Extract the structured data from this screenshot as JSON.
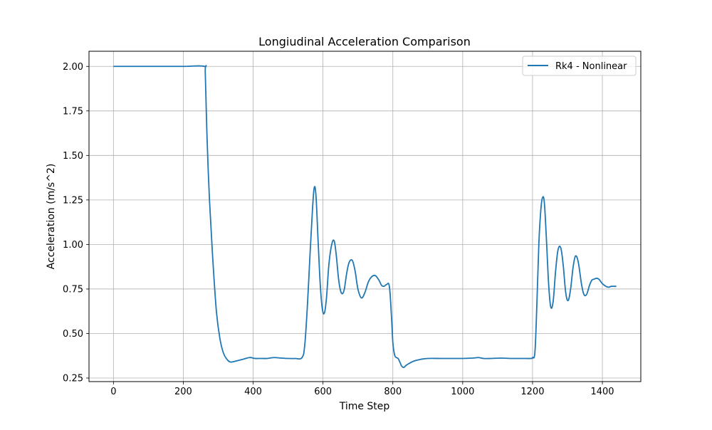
{
  "chart_data": {
    "type": "line",
    "title": "Longiudinal Acceleration Comparison",
    "xlabel": "Time Step",
    "ylabel": "Acceleration (m/s^2)",
    "xlim": [
      -70,
      1510
    ],
    "ylim": [
      0.23,
      2.085
    ],
    "xticks": [
      0,
      200,
      400,
      600,
      800,
      1000,
      1200,
      1400
    ],
    "xtick_labels": [
      "0",
      "200",
      "400",
      "600",
      "800",
      "1000",
      "1200",
      "1400"
    ],
    "yticks": [
      0.25,
      0.5,
      0.75,
      1.0,
      1.25,
      1.5,
      1.75,
      2.0
    ],
    "ytick_labels": [
      "0.25",
      "0.50",
      "0.75",
      "1.00",
      "1.25",
      "1.50",
      "1.75",
      "2.00"
    ],
    "grid": true,
    "legend_position": "top-right",
    "series": [
      {
        "name": "Rk4 - Nonlinear",
        "color": "#1f77b4",
        "x": [
          0,
          100,
          200,
          260,
          263,
          268,
          275,
          285,
          295,
          305,
          315,
          325,
          335,
          350,
          370,
          390,
          405,
          420,
          440,
          460,
          480,
          500,
          520,
          540,
          548,
          556,
          563,
          570,
          575,
          580,
          586,
          592,
          598,
          604,
          610,
          617,
          625,
          632,
          638,
          645,
          652,
          660,
          668,
          675,
          684,
          692,
          700,
          710,
          720,
          730,
          740,
          750,
          760,
          768,
          775,
          782,
          790,
          796,
          800,
          805,
          810,
          815,
          820,
          826,
          832,
          837,
          845,
          860,
          880,
          900,
          940,
          1000,
          1030,
          1045,
          1060,
          1080,
          1110,
          1140,
          1170,
          1195,
          1200,
          1207,
          1213,
          1218,
          1224,
          1229,
          1234,
          1240,
          1246,
          1252,
          1259,
          1266,
          1273,
          1281,
          1288,
          1295,
          1302,
          1309,
          1316,
          1323,
          1331,
          1340,
          1347,
          1355,
          1363,
          1370,
          1376,
          1383,
          1390,
          1400,
          1410,
          1418,
          1425,
          1432,
          1440
        ],
        "y": [
          2.0,
          2.0,
          2.0,
          2.0,
          1.96,
          1.6,
          1.25,
          0.9,
          0.62,
          0.47,
          0.39,
          0.355,
          0.34,
          0.345,
          0.355,
          0.365,
          0.36,
          0.36,
          0.36,
          0.365,
          0.362,
          0.36,
          0.36,
          0.365,
          0.44,
          0.68,
          0.95,
          1.2,
          1.32,
          1.27,
          1.02,
          0.78,
          0.64,
          0.615,
          0.7,
          0.89,
          1.0,
          1.02,
          0.94,
          0.8,
          0.73,
          0.74,
          0.84,
          0.9,
          0.91,
          0.85,
          0.75,
          0.7,
          0.73,
          0.79,
          0.82,
          0.825,
          0.8,
          0.77,
          0.765,
          0.775,
          0.765,
          0.6,
          0.45,
          0.38,
          0.365,
          0.36,
          0.34,
          0.315,
          0.31,
          0.32,
          0.33,
          0.345,
          0.355,
          0.36,
          0.36,
          0.36,
          0.362,
          0.365,
          0.36,
          0.36,
          0.362,
          0.36,
          0.36,
          0.36,
          0.365,
          0.4,
          0.7,
          1.0,
          1.2,
          1.265,
          1.23,
          1.02,
          0.78,
          0.65,
          0.68,
          0.85,
          0.97,
          0.98,
          0.88,
          0.73,
          0.685,
          0.75,
          0.87,
          0.935,
          0.9,
          0.78,
          0.72,
          0.72,
          0.77,
          0.8,
          0.805,
          0.81,
          0.805,
          0.78,
          0.765,
          0.76,
          0.765,
          0.765,
          0.765
        ]
      }
    ]
  }
}
